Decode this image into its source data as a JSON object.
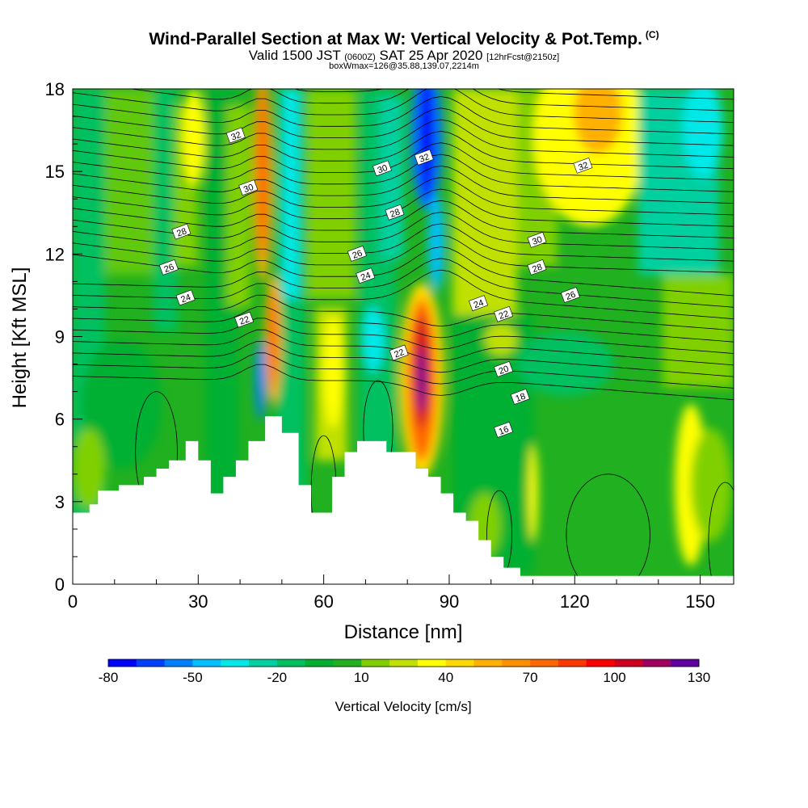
{
  "title": {
    "main": "Wind-Parallel Section at Max W: Vertical Velocity & Pot.Temp.",
    "copyright": "(C)",
    "valid_prefix": "Valid 1500 JST",
    "valid_utc": "(0600Z)",
    "valid_date": "SAT 25 Apr 2020",
    "forecast": "[12hrFcst@2150z]",
    "boxwmax": "boxWmax=126@35.88,139.07,2214m"
  },
  "chart_data": {
    "type": "heatmap",
    "xlabel": "Distance [nm]",
    "ylabel": "Height [Kft MSL]",
    "xlim": [
      0,
      158
    ],
    "ylim": [
      0,
      18
    ],
    "x_ticks": [
      0,
      30,
      60,
      90,
      120,
      150
    ],
    "y_ticks": [
      0,
      3,
      6,
      9,
      12,
      15,
      18
    ],
    "colorbar": {
      "title": "Vertical Velocity [cm/s]",
      "tick_values": [
        -80,
        -50,
        -20,
        10,
        40,
        70,
        100,
        130
      ],
      "tick_labels": [
        "-80",
        "-50",
        "-20",
        "10",
        "40",
        "70",
        "100",
        "130"
      ],
      "colors": [
        "#0000ff",
        "#0040ff",
        "#0080ff",
        "#00c0ff",
        "#00e8e8",
        "#00d0a0",
        "#00c060",
        "#00b030",
        "#20b020",
        "#80d000",
        "#c0e000",
        "#ffff00",
        "#ffd800",
        "#ffb000",
        "#ff9000",
        "#ff6800",
        "#ff3800",
        "#ff0000",
        "#d00020",
        "#a00060",
        "#6000a0"
      ]
    },
    "terrain_profile": [
      [
        0,
        2.6
      ],
      [
        4,
        2.9
      ],
      [
        6,
        3.4
      ],
      [
        11,
        3.6
      ],
      [
        13,
        3.6
      ],
      [
        17,
        3.9
      ],
      [
        20,
        4.2
      ],
      [
        23,
        4.5
      ],
      [
        27,
        5.2
      ],
      [
        30,
        4.5
      ],
      [
        33,
        3.3
      ],
      [
        36,
        3.9
      ],
      [
        39,
        4.5
      ],
      [
        42,
        5.2
      ],
      [
        46,
        6.1
      ],
      [
        50,
        5.5
      ],
      [
        54,
        3.6
      ],
      [
        57,
        2.6
      ],
      [
        62,
        3.9
      ],
      [
        65,
        4.8
      ],
      [
        68,
        5.2
      ],
      [
        71,
        5.2
      ],
      [
        75,
        4.8
      ],
      [
        78,
        4.8
      ],
      [
        82,
        4.2
      ],
      [
        85,
        3.9
      ],
      [
        88,
        3.3
      ],
      [
        91,
        2.6
      ],
      [
        94,
        2.3
      ],
      [
        97,
        1.6
      ],
      [
        100,
        1.0
      ],
      [
        103,
        0.6
      ],
      [
        107,
        0.3
      ],
      [
        158,
        0.3
      ]
    ],
    "theta_contour_labels": [
      {
        "x": 39,
        "y": 16.3,
        "value": "32"
      },
      {
        "x": 84,
        "y": 15.5,
        "value": "32"
      },
      {
        "x": 122,
        "y": 15.2,
        "value": "32"
      },
      {
        "x": 42,
        "y": 14.4,
        "value": "30"
      },
      {
        "x": 74,
        "y": 15.1,
        "value": "30"
      },
      {
        "x": 111,
        "y": 12.5,
        "value": "30"
      },
      {
        "x": 26,
        "y": 12.8,
        "value": "28"
      },
      {
        "x": 77,
        "y": 13.5,
        "value": "28"
      },
      {
        "x": 111,
        "y": 11.5,
        "value": "28"
      },
      {
        "x": 23,
        "y": 11.5,
        "value": "26"
      },
      {
        "x": 68,
        "y": 12.0,
        "value": "26"
      },
      {
        "x": 119,
        "y": 10.5,
        "value": "26"
      },
      {
        "x": 27,
        "y": 10.4,
        "value": "24"
      },
      {
        "x": 70,
        "y": 11.2,
        "value": "24"
      },
      {
        "x": 97,
        "y": 10.2,
        "value": "24"
      },
      {
        "x": 41,
        "y": 9.6,
        "value": "22"
      },
      {
        "x": 78,
        "y": 8.4,
        "value": "22"
      },
      {
        "x": 103,
        "y": 9.8,
        "value": "22"
      },
      {
        "x": 103,
        "y": 7.8,
        "value": "20"
      },
      {
        "x": 107,
        "y": 6.8,
        "value": "18"
      },
      {
        "x": 103,
        "y": 5.6,
        "value": "16"
      }
    ],
    "velocity_features": [
      {
        "name": "downdraft",
        "x": 86,
        "y_low": 11.0,
        "y_high": 18.0,
        "value": -80
      },
      {
        "name": "updraft",
        "x": 83,
        "y_low": 4.0,
        "y_high": 11.0,
        "value": 130
      },
      {
        "name": "updraft",
        "x": 46,
        "y_low": 13.0,
        "y_high": 18.0,
        "value": 70
      },
      {
        "name": "updraft",
        "x": 50,
        "y_low": 7.0,
        "y_high": 11.0,
        "value": 70
      },
      {
        "name": "downdraft",
        "x": 46,
        "y_low": 6.5,
        "y_high": 9.0,
        "value": -50
      },
      {
        "name": "updraft",
        "x": 123,
        "y_low": 13.0,
        "y_high": 18.0,
        "value": 40
      },
      {
        "name": "updraft",
        "x": 149,
        "y_low": 1.0,
        "y_high": 6.0,
        "value": 40
      }
    ]
  }
}
